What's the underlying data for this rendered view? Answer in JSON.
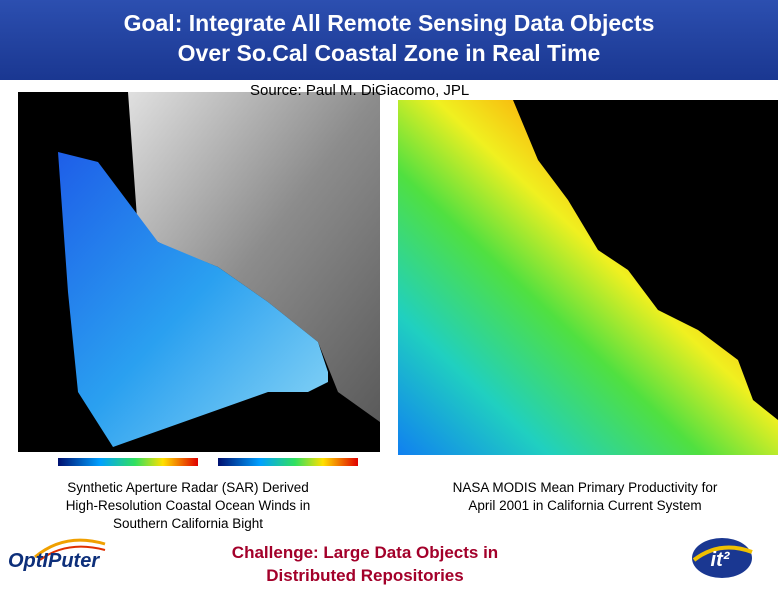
{
  "title": [
    "Goal: Integrate All Remote Sensing Data Objects",
    "Over So.Cal Coastal Zone in Real Time"
  ],
  "source": "Source: Paul M. DiGiacomo, JPL",
  "captions": {
    "left": [
      "Synthetic Aperture Radar (SAR) Derived",
      "High-Resolution Coastal Ocean Winds in",
      "Southern California Bight"
    ],
    "right": [
      "NASA MODIS Mean Primary Productivity for",
      "April 2001 in California Current System"
    ]
  },
  "challenge": [
    "Challenge: Large Data Objects in",
    "Distributed Repositories"
  ],
  "logos": {
    "left": "OptIPuter",
    "right": "it²"
  }
}
